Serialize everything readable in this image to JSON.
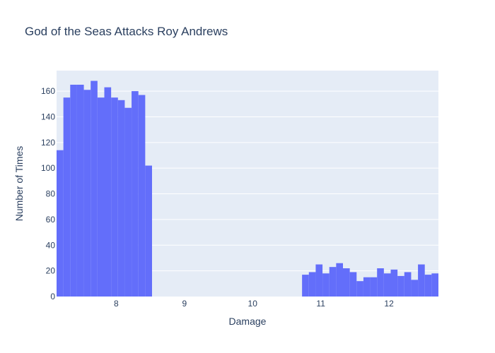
{
  "chart_data": {
    "type": "bar",
    "title": "God of the Seas Attacks Roy Andrews",
    "xlabel": "Damage",
    "ylabel": "Number of Times",
    "xlim": [
      7.125,
      12.725
    ],
    "ylim": [
      0,
      176
    ],
    "bin_width": 0.1,
    "x_ticks": [
      8,
      9,
      10,
      11,
      12
    ],
    "y_ticks": [
      0,
      20,
      40,
      60,
      80,
      100,
      120,
      140,
      160
    ],
    "bins": [
      {
        "x0": 7.125,
        "x1": 7.225,
        "y": 114
      },
      {
        "x0": 7.225,
        "x1": 7.325,
        "y": 155
      },
      {
        "x0": 7.325,
        "x1": 7.425,
        "y": 165
      },
      {
        "x0": 7.425,
        "x1": 7.525,
        "y": 165
      },
      {
        "x0": 7.525,
        "x1": 7.625,
        "y": 161
      },
      {
        "x0": 7.625,
        "x1": 7.725,
        "y": 168
      },
      {
        "x0": 7.725,
        "x1": 7.825,
        "y": 155
      },
      {
        "x0": 7.825,
        "x1": 7.925,
        "y": 163
      },
      {
        "x0": 7.925,
        "x1": 8.025,
        "y": 155
      },
      {
        "x0": 8.025,
        "x1": 8.125,
        "y": 153
      },
      {
        "x0": 8.125,
        "x1": 8.225,
        "y": 147
      },
      {
        "x0": 8.225,
        "x1": 8.325,
        "y": 160
      },
      {
        "x0": 8.325,
        "x1": 8.425,
        "y": 157
      },
      {
        "x0": 8.425,
        "x1": 8.525,
        "y": 102
      },
      {
        "x0": 10.725,
        "x1": 10.825,
        "y": 17
      },
      {
        "x0": 10.825,
        "x1": 10.925,
        "y": 19
      },
      {
        "x0": 10.925,
        "x1": 11.025,
        "y": 25
      },
      {
        "x0": 11.025,
        "x1": 11.125,
        "y": 18
      },
      {
        "x0": 11.125,
        "x1": 11.225,
        "y": 23
      },
      {
        "x0": 11.225,
        "x1": 11.325,
        "y": 26
      },
      {
        "x0": 11.325,
        "x1": 11.425,
        "y": 22
      },
      {
        "x0": 11.425,
        "x1": 11.525,
        "y": 19
      },
      {
        "x0": 11.525,
        "x1": 11.625,
        "y": 12
      },
      {
        "x0": 11.625,
        "x1": 11.725,
        "y": 15
      },
      {
        "x0": 11.725,
        "x1": 11.825,
        "y": 15
      },
      {
        "x0": 11.825,
        "x1": 11.925,
        "y": 22
      },
      {
        "x0": 11.925,
        "x1": 12.025,
        "y": 18
      },
      {
        "x0": 12.025,
        "x1": 12.125,
        "y": 21
      },
      {
        "x0": 12.125,
        "x1": 12.225,
        "y": 16
      },
      {
        "x0": 12.225,
        "x1": 12.325,
        "y": 19
      },
      {
        "x0": 12.325,
        "x1": 12.425,
        "y": 13
      },
      {
        "x0": 12.425,
        "x1": 12.525,
        "y": 25
      },
      {
        "x0": 12.525,
        "x1": 12.625,
        "y": 17
      },
      {
        "x0": 12.625,
        "x1": 12.725,
        "y": 18
      }
    ],
    "grid": true,
    "legend": "none",
    "colors": {
      "bar": "#636efa",
      "plot_bg": "#e5ecf6",
      "grid": "#ffffff",
      "text": "#2a3f5f"
    }
  }
}
